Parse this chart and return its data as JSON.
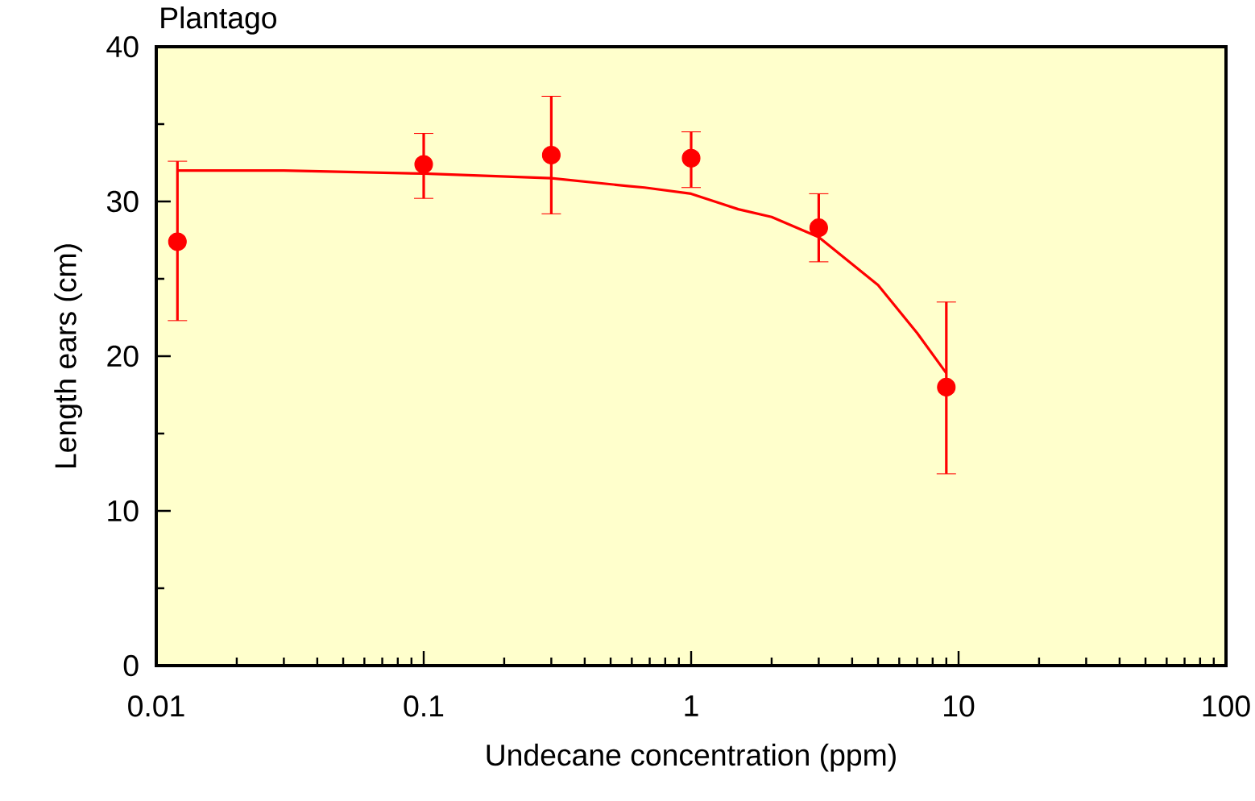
{
  "chart_data": {
    "type": "scatter",
    "title": "Plantago",
    "xlabel": "Undecane concentration (ppm)",
    "ylabel": "Length ears (cm)",
    "log": "x",
    "xlim": [
      0.01,
      100
    ],
    "xticks": [
      0.01,
      0.1,
      1,
      10,
      100
    ],
    "ylim": [
      0,
      40
    ],
    "yticks": [
      0,
      10,
      20,
      30,
      40
    ],
    "grid": false,
    "marker": "circle",
    "series": [
      {
        "color": "#ff0000",
        "x": [
          0.012,
          0.1,
          0.3,
          1,
          3,
          9
        ],
        "values": [
          27.4,
          32.4,
          33.0,
          32.8,
          28.3,
          18.0
        ],
        "errors": [
          [
            22.3,
            32.6
          ],
          [
            30.2,
            34.4
          ],
          [
            29.2,
            36.8
          ],
          [
            30.9,
            34.5
          ],
          [
            26.1,
            30.5
          ],
          [
            12.4,
            23.5
          ]
        ]
      },
      {
        "type": "line",
        "color": "#ff0000",
        "marker": "none",
        "line_style": "solid",
        "x": [
          0.012,
          0.03,
          0.1,
          0.3,
          0.58,
          0.67,
          1,
          1.5,
          2,
          3,
          5,
          7,
          9
        ],
        "values": [
          32.0,
          32.0,
          31.8,
          31.5,
          31.0,
          30.9,
          30.5,
          29.5,
          29.0,
          27.7,
          24.6,
          21.5,
          18.9
        ]
      }
    ]
  }
}
